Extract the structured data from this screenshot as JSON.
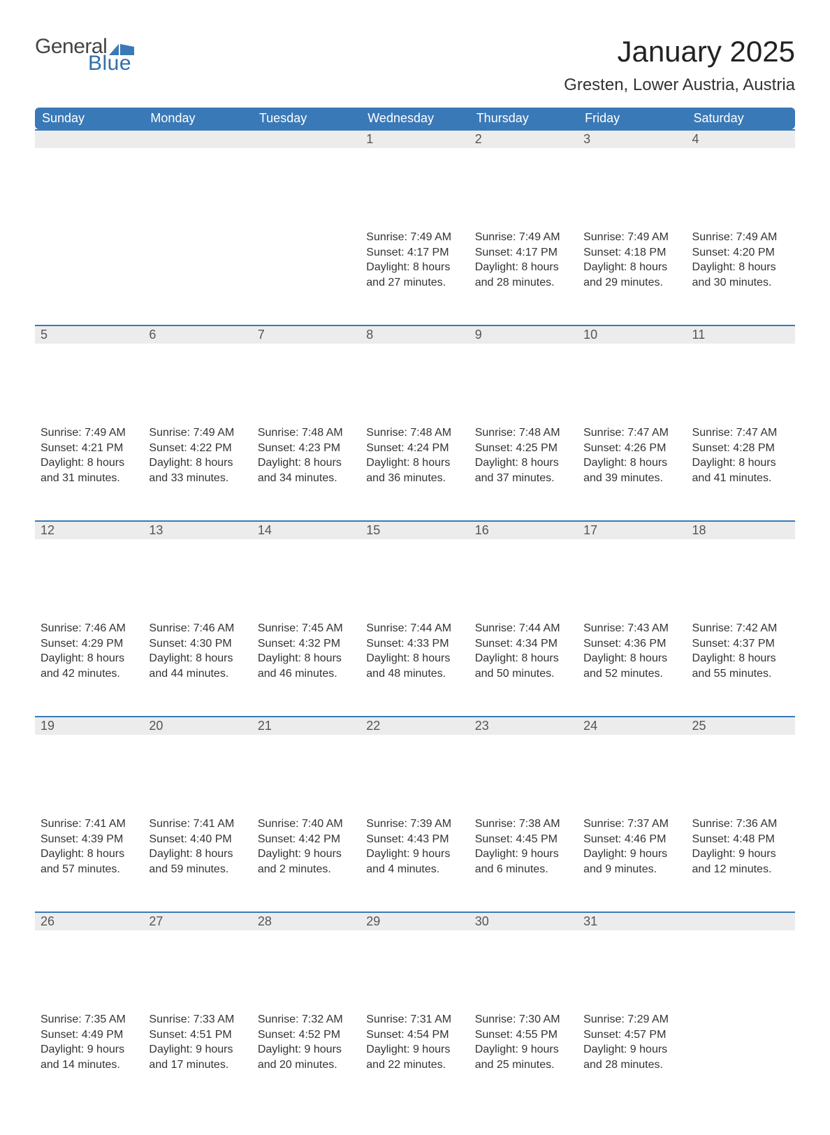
{
  "logo": {
    "text1": "General",
    "text2": "Blue",
    "icon_color": "#3a79b7"
  },
  "title": "January 2025",
  "location": "Gresten, Lower Austria, Austria",
  "colors": {
    "header_bg": "#3a79b7",
    "header_text": "#ffffff",
    "daynum_bg": "#ececec",
    "daynum_border": "#3a79b7",
    "body_text": "#333333",
    "page_bg": "#ffffff"
  },
  "font": {
    "family": "Arial",
    "title_size": 42,
    "location_size": 24,
    "header_size": 18,
    "daynum_size": 18,
    "body_size": 16
  },
  "calendar": {
    "type": "table",
    "columns": [
      "Sunday",
      "Monday",
      "Tuesday",
      "Wednesday",
      "Thursday",
      "Friday",
      "Saturday"
    ],
    "weeks": [
      [
        null,
        null,
        null,
        {
          "num": "1",
          "sunrise": "Sunrise: 7:49 AM",
          "sunset": "Sunset: 4:17 PM",
          "daylight1": "Daylight: 8 hours",
          "daylight2": "and 27 minutes."
        },
        {
          "num": "2",
          "sunrise": "Sunrise: 7:49 AM",
          "sunset": "Sunset: 4:17 PM",
          "daylight1": "Daylight: 8 hours",
          "daylight2": "and 28 minutes."
        },
        {
          "num": "3",
          "sunrise": "Sunrise: 7:49 AM",
          "sunset": "Sunset: 4:18 PM",
          "daylight1": "Daylight: 8 hours",
          "daylight2": "and 29 minutes."
        },
        {
          "num": "4",
          "sunrise": "Sunrise: 7:49 AM",
          "sunset": "Sunset: 4:20 PM",
          "daylight1": "Daylight: 8 hours",
          "daylight2": "and 30 minutes."
        }
      ],
      [
        {
          "num": "5",
          "sunrise": "Sunrise: 7:49 AM",
          "sunset": "Sunset: 4:21 PM",
          "daylight1": "Daylight: 8 hours",
          "daylight2": "and 31 minutes."
        },
        {
          "num": "6",
          "sunrise": "Sunrise: 7:49 AM",
          "sunset": "Sunset: 4:22 PM",
          "daylight1": "Daylight: 8 hours",
          "daylight2": "and 33 minutes."
        },
        {
          "num": "7",
          "sunrise": "Sunrise: 7:48 AM",
          "sunset": "Sunset: 4:23 PM",
          "daylight1": "Daylight: 8 hours",
          "daylight2": "and 34 minutes."
        },
        {
          "num": "8",
          "sunrise": "Sunrise: 7:48 AM",
          "sunset": "Sunset: 4:24 PM",
          "daylight1": "Daylight: 8 hours",
          "daylight2": "and 36 minutes."
        },
        {
          "num": "9",
          "sunrise": "Sunrise: 7:48 AM",
          "sunset": "Sunset: 4:25 PM",
          "daylight1": "Daylight: 8 hours",
          "daylight2": "and 37 minutes."
        },
        {
          "num": "10",
          "sunrise": "Sunrise: 7:47 AM",
          "sunset": "Sunset: 4:26 PM",
          "daylight1": "Daylight: 8 hours",
          "daylight2": "and 39 minutes."
        },
        {
          "num": "11",
          "sunrise": "Sunrise: 7:47 AM",
          "sunset": "Sunset: 4:28 PM",
          "daylight1": "Daylight: 8 hours",
          "daylight2": "and 41 minutes."
        }
      ],
      [
        {
          "num": "12",
          "sunrise": "Sunrise: 7:46 AM",
          "sunset": "Sunset: 4:29 PM",
          "daylight1": "Daylight: 8 hours",
          "daylight2": "and 42 minutes."
        },
        {
          "num": "13",
          "sunrise": "Sunrise: 7:46 AM",
          "sunset": "Sunset: 4:30 PM",
          "daylight1": "Daylight: 8 hours",
          "daylight2": "and 44 minutes."
        },
        {
          "num": "14",
          "sunrise": "Sunrise: 7:45 AM",
          "sunset": "Sunset: 4:32 PM",
          "daylight1": "Daylight: 8 hours",
          "daylight2": "and 46 minutes."
        },
        {
          "num": "15",
          "sunrise": "Sunrise: 7:44 AM",
          "sunset": "Sunset: 4:33 PM",
          "daylight1": "Daylight: 8 hours",
          "daylight2": "and 48 minutes."
        },
        {
          "num": "16",
          "sunrise": "Sunrise: 7:44 AM",
          "sunset": "Sunset: 4:34 PM",
          "daylight1": "Daylight: 8 hours",
          "daylight2": "and 50 minutes."
        },
        {
          "num": "17",
          "sunrise": "Sunrise: 7:43 AM",
          "sunset": "Sunset: 4:36 PM",
          "daylight1": "Daylight: 8 hours",
          "daylight2": "and 52 minutes."
        },
        {
          "num": "18",
          "sunrise": "Sunrise: 7:42 AM",
          "sunset": "Sunset: 4:37 PM",
          "daylight1": "Daylight: 8 hours",
          "daylight2": "and 55 minutes."
        }
      ],
      [
        {
          "num": "19",
          "sunrise": "Sunrise: 7:41 AM",
          "sunset": "Sunset: 4:39 PM",
          "daylight1": "Daylight: 8 hours",
          "daylight2": "and 57 minutes."
        },
        {
          "num": "20",
          "sunrise": "Sunrise: 7:41 AM",
          "sunset": "Sunset: 4:40 PM",
          "daylight1": "Daylight: 8 hours",
          "daylight2": "and 59 minutes."
        },
        {
          "num": "21",
          "sunrise": "Sunrise: 7:40 AM",
          "sunset": "Sunset: 4:42 PM",
          "daylight1": "Daylight: 9 hours",
          "daylight2": "and 2 minutes."
        },
        {
          "num": "22",
          "sunrise": "Sunrise: 7:39 AM",
          "sunset": "Sunset: 4:43 PM",
          "daylight1": "Daylight: 9 hours",
          "daylight2": "and 4 minutes."
        },
        {
          "num": "23",
          "sunrise": "Sunrise: 7:38 AM",
          "sunset": "Sunset: 4:45 PM",
          "daylight1": "Daylight: 9 hours",
          "daylight2": "and 6 minutes."
        },
        {
          "num": "24",
          "sunrise": "Sunrise: 7:37 AM",
          "sunset": "Sunset: 4:46 PM",
          "daylight1": "Daylight: 9 hours",
          "daylight2": "and 9 minutes."
        },
        {
          "num": "25",
          "sunrise": "Sunrise: 7:36 AM",
          "sunset": "Sunset: 4:48 PM",
          "daylight1": "Daylight: 9 hours",
          "daylight2": "and 12 minutes."
        }
      ],
      [
        {
          "num": "26",
          "sunrise": "Sunrise: 7:35 AM",
          "sunset": "Sunset: 4:49 PM",
          "daylight1": "Daylight: 9 hours",
          "daylight2": "and 14 minutes."
        },
        {
          "num": "27",
          "sunrise": "Sunrise: 7:33 AM",
          "sunset": "Sunset: 4:51 PM",
          "daylight1": "Daylight: 9 hours",
          "daylight2": "and 17 minutes."
        },
        {
          "num": "28",
          "sunrise": "Sunrise: 7:32 AM",
          "sunset": "Sunset: 4:52 PM",
          "daylight1": "Daylight: 9 hours",
          "daylight2": "and 20 minutes."
        },
        {
          "num": "29",
          "sunrise": "Sunrise: 7:31 AM",
          "sunset": "Sunset: 4:54 PM",
          "daylight1": "Daylight: 9 hours",
          "daylight2": "and 22 minutes."
        },
        {
          "num": "30",
          "sunrise": "Sunrise: 7:30 AM",
          "sunset": "Sunset: 4:55 PM",
          "daylight1": "Daylight: 9 hours",
          "daylight2": "and 25 minutes."
        },
        {
          "num": "31",
          "sunrise": "Sunrise: 7:29 AM",
          "sunset": "Sunset: 4:57 PM",
          "daylight1": "Daylight: 9 hours",
          "daylight2": "and 28 minutes."
        },
        null
      ]
    ]
  }
}
